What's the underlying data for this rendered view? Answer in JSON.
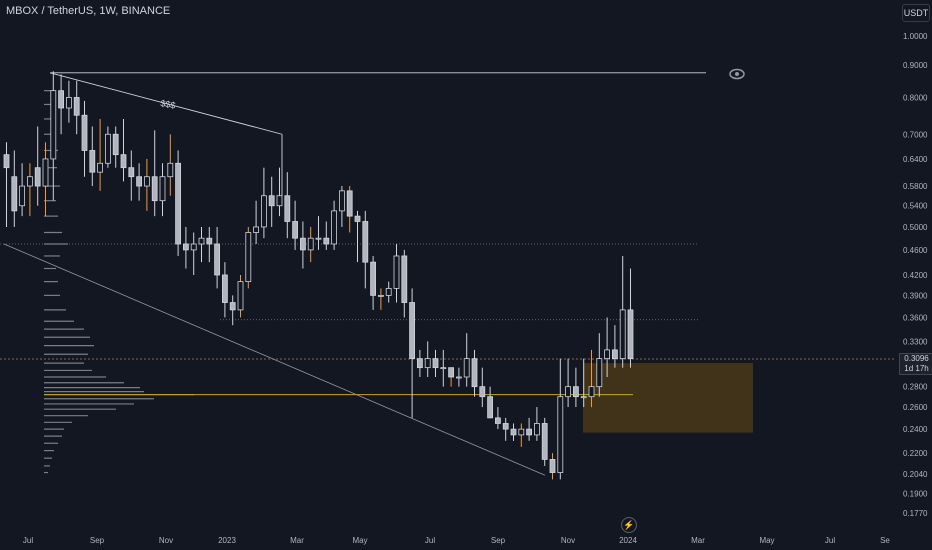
{
  "header": {
    "symbol_title": "MBOX / TetherUS, 1W, BINANCE",
    "currency": "USDT"
  },
  "price_badge": {
    "price": "0.3096",
    "countdown": "1d 17h"
  },
  "annotation": {
    "label": "$$$"
  },
  "icons": {
    "eye": "eye-icon",
    "bolt": "lightning-icon"
  },
  "colors": {
    "background": "#131722",
    "candle_up_fill": "#131722",
    "candle_up_border": "#d1d4dc",
    "candle_down_fill": "#b2b5be",
    "wick": "#d1d4dc",
    "orange_wick": "#f09a38",
    "poc_line": "#c9a227",
    "zone_fill": "#4a3818",
    "current_price_line": "#d17a3a",
    "dotted": "#787b86"
  },
  "chart_data": {
    "type": "candlestick",
    "title": "MBOX / TetherUS, 1W, BINANCE",
    "y_axis_scale": "log",
    "y_ticks": [
      "1.0000",
      "0.9000",
      "0.8000",
      "0.7000",
      "0.6400",
      "0.5800",
      "0.5400",
      "0.5000",
      "0.4600",
      "0.4200",
      "0.3900",
      "0.3600",
      "0.3300",
      "0.3096",
      "0.2800",
      "0.2600",
      "0.2400",
      "0.2200",
      "0.2040",
      "0.1900",
      "0.1770"
    ],
    "y_tick_values": [
      1.0,
      0.9,
      0.8,
      0.7,
      0.64,
      0.58,
      0.54,
      0.5,
      0.46,
      0.42,
      0.39,
      0.36,
      0.33,
      0.3096,
      0.28,
      0.26,
      0.24,
      0.22,
      0.204,
      0.19,
      0.177
    ],
    "x_tick_labels": [
      "Jul",
      "Sep",
      "Nov",
      "2023",
      "Mar",
      "May",
      "Jul",
      "Sep",
      "Nov",
      "2024",
      "Mar",
      "May",
      "Jul",
      "Se"
    ],
    "current_price": 0.3096,
    "levels": {
      "dotted_high": 0.47,
      "dotted_mid": 0.357,
      "poc": 0.272,
      "top_trend": 0.875
    },
    "zone": {
      "top": 0.305,
      "bottom": 0.237
    },
    "candles": [
      [
        0.65,
        0.62,
        0.68,
        0.5
      ],
      [
        0.6,
        0.53,
        0.66,
        0.5
      ],
      [
        0.54,
        0.58,
        0.63,
        0.52
      ],
      [
        0.58,
        0.6,
        0.63,
        0.52
      ],
      [
        0.62,
        0.58,
        0.72,
        0.54
      ],
      [
        0.58,
        0.64,
        0.68,
        0.52
      ],
      [
        0.64,
        0.82,
        0.88,
        0.55
      ],
      [
        0.82,
        0.77,
        0.87,
        0.7
      ],
      [
        0.77,
        0.8,
        0.85,
        0.73
      ],
      [
        0.8,
        0.75,
        0.85,
        0.7
      ],
      [
        0.75,
        0.66,
        0.79,
        0.6
      ],
      [
        0.66,
        0.61,
        0.72,
        0.58
      ],
      [
        0.61,
        0.63,
        0.74,
        0.57
      ],
      [
        0.63,
        0.7,
        0.72,
        0.62
      ],
      [
        0.7,
        0.65,
        0.72,
        0.62
      ],
      [
        0.65,
        0.62,
        0.74,
        0.59
      ],
      [
        0.62,
        0.6,
        0.66,
        0.55
      ],
      [
        0.6,
        0.58,
        0.63,
        0.55
      ],
      [
        0.58,
        0.6,
        0.64,
        0.53
      ],
      [
        0.6,
        0.55,
        0.71,
        0.52
      ],
      [
        0.55,
        0.6,
        0.63,
        0.52
      ],
      [
        0.6,
        0.63,
        0.7,
        0.56
      ],
      [
        0.63,
        0.47,
        0.66,
        0.45
      ],
      [
        0.47,
        0.46,
        0.5,
        0.43
      ],
      [
        0.46,
        0.47,
        0.49,
        0.42
      ],
      [
        0.47,
        0.48,
        0.5,
        0.44
      ],
      [
        0.48,
        0.47,
        0.5,
        0.44
      ],
      [
        0.47,
        0.42,
        0.5,
        0.4
      ],
      [
        0.42,
        0.38,
        0.44,
        0.36
      ],
      [
        0.38,
        0.37,
        0.39,
        0.35
      ],
      [
        0.37,
        0.41,
        0.42,
        0.36
      ],
      [
        0.41,
        0.49,
        0.5,
        0.4
      ],
      [
        0.49,
        0.5,
        0.55,
        0.47
      ],
      [
        0.5,
        0.56,
        0.62,
        0.48
      ],
      [
        0.56,
        0.54,
        0.6,
        0.5
      ],
      [
        0.54,
        0.56,
        0.62,
        0.52
      ],
      [
        0.56,
        0.51,
        0.61,
        0.48
      ],
      [
        0.51,
        0.48,
        0.55,
        0.46
      ],
      [
        0.48,
        0.46,
        0.51,
        0.43
      ],
      [
        0.46,
        0.48,
        0.5,
        0.44
      ],
      [
        0.48,
        0.48,
        0.52,
        0.46
      ],
      [
        0.48,
        0.47,
        0.51,
        0.46
      ],
      [
        0.47,
        0.53,
        0.55,
        0.46
      ],
      [
        0.53,
        0.57,
        0.58,
        0.5
      ],
      [
        0.57,
        0.52,
        0.58,
        0.49
      ],
      [
        0.52,
        0.51,
        0.53,
        0.44
      ],
      [
        0.51,
        0.44,
        0.53,
        0.4
      ],
      [
        0.44,
        0.39,
        0.45,
        0.37
      ],
      [
        0.39,
        0.39,
        0.4,
        0.37
      ],
      [
        0.39,
        0.4,
        0.41,
        0.38
      ],
      [
        0.4,
        0.45,
        0.47,
        0.38
      ],
      [
        0.45,
        0.38,
        0.46,
        0.36
      ],
      [
        0.38,
        0.31,
        0.4,
        0.25
      ],
      [
        0.31,
        0.3,
        0.32,
        0.29
      ],
      [
        0.3,
        0.31,
        0.33,
        0.29
      ],
      [
        0.31,
        0.3,
        0.32,
        0.29
      ],
      [
        0.3,
        0.3,
        0.32,
        0.28
      ],
      [
        0.3,
        0.29,
        0.3,
        0.28
      ],
      [
        0.29,
        0.29,
        0.3,
        0.28
      ],
      [
        0.29,
        0.31,
        0.34,
        0.28
      ],
      [
        0.31,
        0.28,
        0.32,
        0.27
      ],
      [
        0.28,
        0.27,
        0.3,
        0.26
      ],
      [
        0.27,
        0.25,
        0.28,
        0.25
      ],
      [
        0.25,
        0.245,
        0.26,
        0.24
      ],
      [
        0.245,
        0.24,
        0.25,
        0.23
      ],
      [
        0.24,
        0.235,
        0.245,
        0.23
      ],
      [
        0.235,
        0.24,
        0.245,
        0.225
      ],
      [
        0.24,
        0.235,
        0.25,
        0.23
      ],
      [
        0.235,
        0.245,
        0.26,
        0.23
      ],
      [
        0.245,
        0.215,
        0.25,
        0.21
      ],
      [
        0.215,
        0.205,
        0.22,
        0.2
      ],
      [
        0.205,
        0.27,
        0.31,
        0.2
      ],
      [
        0.27,
        0.28,
        0.31,
        0.26
      ],
      [
        0.28,
        0.27,
        0.3,
        0.26
      ],
      [
        0.27,
        0.27,
        0.31,
        0.26
      ],
      [
        0.27,
        0.28,
        0.32,
        0.26
      ],
      [
        0.28,
        0.31,
        0.34,
        0.27
      ],
      [
        0.31,
        0.32,
        0.36,
        0.29
      ],
      [
        0.32,
        0.31,
        0.35,
        0.3
      ],
      [
        0.31,
        0.37,
        0.45,
        0.3
      ],
      [
        0.37,
        0.31,
        0.43,
        0.3
      ]
    ],
    "volume_profile": [
      {
        "price": 0.82,
        "len": 8
      },
      {
        "price": 0.78,
        "len": 10
      },
      {
        "price": 0.74,
        "len": 9
      },
      {
        "price": 0.7,
        "len": 12
      },
      {
        "price": 0.66,
        "len": 14
      },
      {
        "price": 0.62,
        "len": 13
      },
      {
        "price": 0.58,
        "len": 16
      },
      {
        "price": 0.55,
        "len": 12
      },
      {
        "price": 0.52,
        "len": 14
      },
      {
        "price": 0.49,
        "len": 18
      },
      {
        "price": 0.47,
        "len": 24
      },
      {
        "price": 0.45,
        "len": 16
      },
      {
        "price": 0.43,
        "len": 12
      },
      {
        "price": 0.41,
        "len": 14
      },
      {
        "price": 0.39,
        "len": 16
      },
      {
        "price": 0.37,
        "len": 22
      },
      {
        "price": 0.355,
        "len": 30
      },
      {
        "price": 0.345,
        "len": 40
      },
      {
        "price": 0.335,
        "len": 46
      },
      {
        "price": 0.325,
        "len": 50
      },
      {
        "price": 0.315,
        "len": 44
      },
      {
        "price": 0.305,
        "len": 40
      },
      {
        "price": 0.297,
        "len": 48
      },
      {
        "price": 0.29,
        "len": 62
      },
      {
        "price": 0.284,
        "len": 80
      },
      {
        "price": 0.279,
        "len": 96
      },
      {
        "price": 0.275,
        "len": 100
      },
      {
        "price": 0.272,
        "len": 150
      },
      {
        "price": 0.268,
        "len": 110
      },
      {
        "price": 0.263,
        "len": 90
      },
      {
        "price": 0.258,
        "len": 72
      },
      {
        "price": 0.252,
        "len": 44
      },
      {
        "price": 0.246,
        "len": 28
      },
      {
        "price": 0.24,
        "len": 20
      },
      {
        "price": 0.234,
        "len": 18
      },
      {
        "price": 0.228,
        "len": 14
      },
      {
        "price": 0.222,
        "len": 10
      },
      {
        "price": 0.216,
        "len": 8
      },
      {
        "price": 0.21,
        "len": 6
      },
      {
        "price": 0.205,
        "len": 4
      }
    ]
  }
}
